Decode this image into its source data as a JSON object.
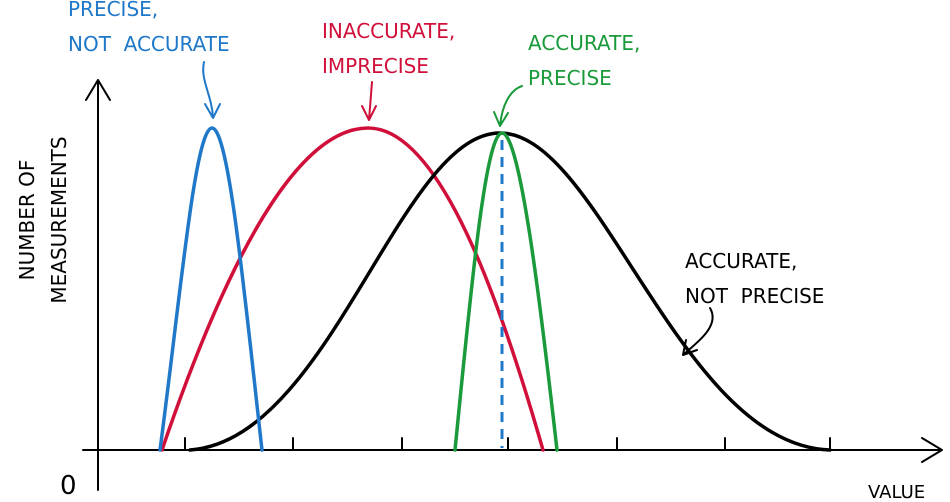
{
  "axes": {
    "x_label": "VALUE",
    "y_label": [
      "NUMBER OF",
      "MEASUREMENTS"
    ],
    "origin": "0"
  },
  "annotations": [
    {
      "lines": [
        "PRECISE,",
        "NOT  ACCURATE"
      ],
      "color": "#1f78c8"
    },
    {
      "lines": [
        "INACCURATE,",
        "IMPRECISE"
      ],
      "color": "#d0103a"
    },
    {
      "lines": [
        "ACCURATE,",
        "PRECISE"
      ],
      "color": "#1a9a3a"
    },
    {
      "lines": [
        "ACCURATE,",
        "NOT  PRECISE"
      ],
      "color": "#000000"
    }
  ]
}
